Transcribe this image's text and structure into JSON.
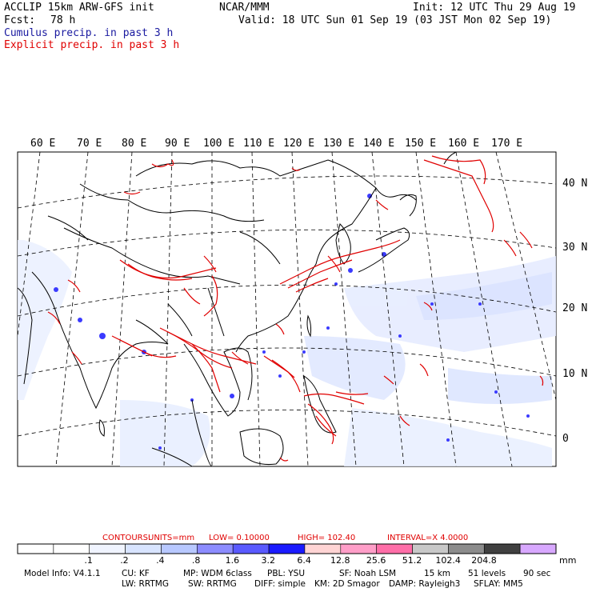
{
  "header": {
    "title_left": "ACCLIP 15km ARW-GFS init",
    "title_center": "NCAR/MMM",
    "init": "Init: 12 UTC Thu 29 Aug 19",
    "fcst_label": "Fcst:",
    "fcst_value": "78 h",
    "valid": "Valid: 18 UTC Sun 01 Sep 19 (03 JST Mon 02 Sep 19)",
    "legend_cumulus": "Cumulus precip. in past 3 h",
    "legend_explicit": "Explicit precip. in past 3 h"
  },
  "map": {
    "lon_labels": [
      "60 E",
      "70 E",
      "80 E",
      "90 E",
      "100 E",
      "110 E",
      "120 E",
      "130 E",
      "140 E",
      "150 E",
      "160 E",
      "170 E"
    ],
    "lat_labels": [
      "40 N",
      "30 N",
      "20 N",
      "10 N",
      "0"
    ],
    "colors": {
      "cumulus": "#2a2ae0",
      "explicit": "#e00000",
      "coast": "#000000",
      "grid": "#000000"
    }
  },
  "contours": {
    "label": "CONTOURS:",
    "units": "UNITS=mm",
    "low": "LOW= 0.10000",
    "high": "HIGH= 102.40",
    "interval": "INTERVAL=X 4.0000"
  },
  "colorbar": {
    "colors": [
      "#ffffff",
      "#ffffff",
      "#f0f4ff",
      "#d8e4ff",
      "#b8c8ff",
      "#8c8cff",
      "#5a5aff",
      "#1a1aff",
      "#ffd4d4",
      "#ff9ec8",
      "#ff6ea8",
      "#c8c8c8",
      "#8c8c8c",
      "#404040",
      "#d8a8ff"
    ],
    "ticks": [
      ".1",
      ".2",
      ".4",
      ".8",
      "1.6",
      "3.2",
      "6.4",
      "12.8",
      "25.6",
      "51.2",
      "102.4",
      "204.8"
    ],
    "unit": "mm"
  },
  "model_info": {
    "line1": [
      "Model Info: V4.1.1",
      "CU: KF",
      "MP: WDM 6class",
      "PBL: YSU",
      "SF: Noah LSM",
      "15 km",
      "51 levels",
      "90 sec"
    ],
    "line2": [
      "LW: RRTMG",
      "SW: RRTMG",
      "DIFF: simple",
      "KM: 2D Smagor",
      "DAMP: Rayleigh3",
      "SFLAY: MM5"
    ]
  }
}
